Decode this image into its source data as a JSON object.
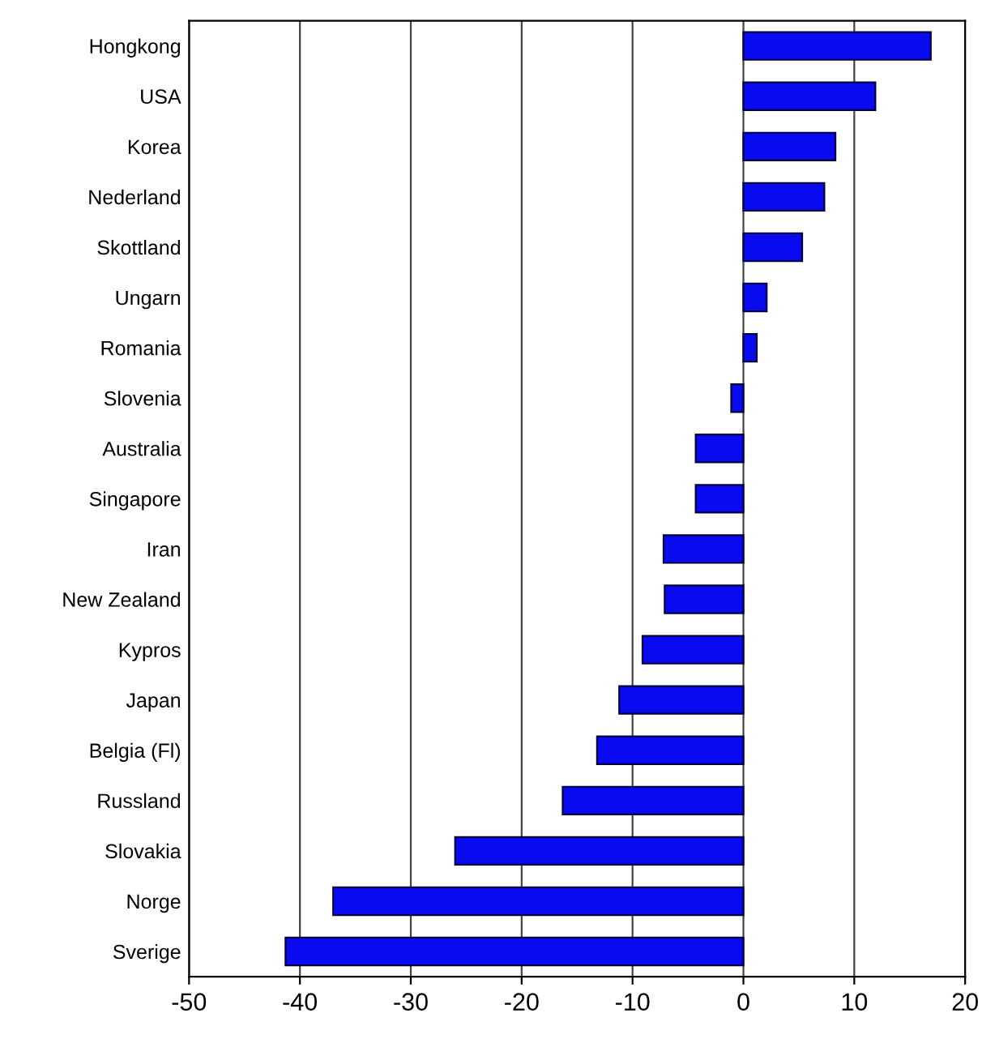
{
  "chart_data": {
    "type": "bar",
    "orientation": "horizontal",
    "categories": [
      "Hongkong",
      "USA",
      "Korea",
      "Nederland",
      "Skottland",
      "Ungarn",
      "Romania",
      "Slovenia",
      "Australia",
      "Singapore",
      "Iran",
      "New Zealand",
      "Kypros",
      "Japan",
      "Belgia (Fl)",
      "Russland",
      "Slovakia",
      "Norge",
      "Sverige"
    ],
    "values": [
      16.9,
      11.9,
      8.3,
      7.3,
      5.3,
      2.1,
      1.2,
      -1.1,
      -4.3,
      -4.3,
      -7.2,
      -7.1,
      -9.1,
      -11.2,
      -13.2,
      -16.3,
      -26,
      -37,
      -41.3
    ],
    "color": "#0a0af0",
    "xlim": [
      -50,
      20
    ],
    "xticks": [
      -50,
      -40,
      -30,
      -20,
      -10,
      0,
      10,
      20
    ],
    "grid": "x"
  }
}
